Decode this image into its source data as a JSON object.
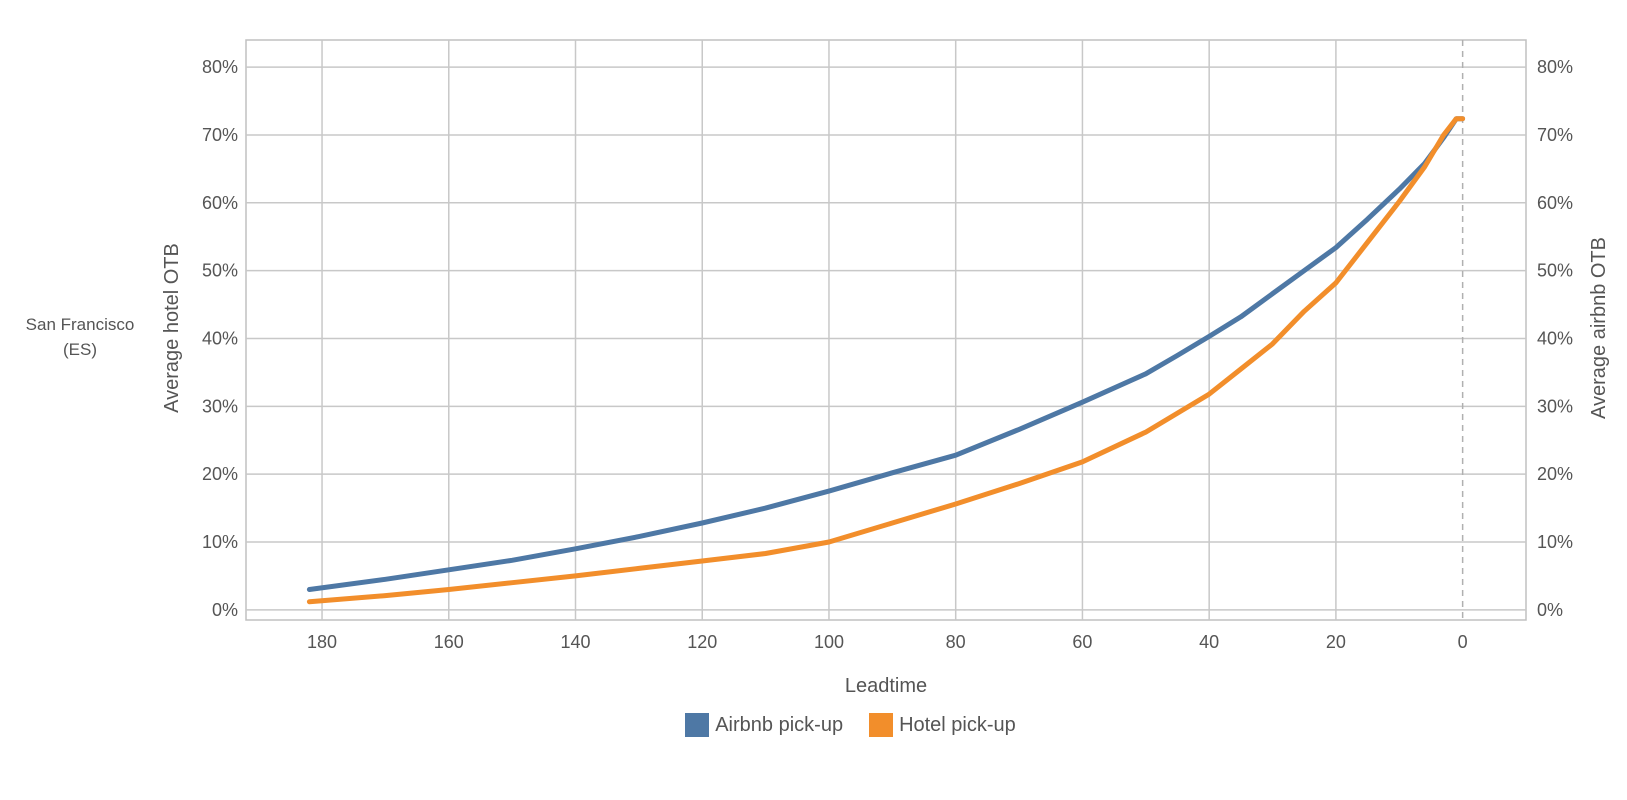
{
  "region_label": [
    "San Francisco",
    "(ES)"
  ],
  "chart_data": {
    "type": "line",
    "xlabel": "Leadtime",
    "ylabel_left": "Average hotel OTB",
    "ylabel_right": "Average airbnb OTB",
    "x_reversed": true,
    "xlim": [
      192,
      -10
    ],
    "ylim": [
      -1.5,
      84
    ],
    "x_ticks": [
      180,
      160,
      140,
      120,
      100,
      80,
      60,
      40,
      20,
      0
    ],
    "x_tick_labels": [
      "180",
      "160",
      "140",
      "120",
      "100",
      "80",
      "60",
      "40",
      "20",
      "0"
    ],
    "y_ticks": [
      0,
      10,
      20,
      30,
      40,
      50,
      60,
      70,
      80
    ],
    "y_tick_labels": [
      "0%",
      "10%",
      "20%",
      "30%",
      "40%",
      "50%",
      "60%",
      "70%",
      "80%"
    ],
    "grid": true,
    "reference_line_x": 0,
    "legend_position": "bottom-center",
    "series": [
      {
        "name": "Airbnb pick-up",
        "color": "#4e78a5",
        "x": [
          182,
          170,
          160,
          150,
          140,
          130,
          120,
          110,
          100,
          90,
          80,
          70,
          60,
          50,
          45,
          40,
          35,
          30,
          25,
          20,
          15,
          10,
          6,
          3,
          1,
          0
        ],
        "y": [
          3,
          4.5,
          5.9,
          7.3,
          9,
          10.8,
          12.8,
          15,
          17.5,
          20.2,
          22.8,
          26.6,
          30.6,
          34.8,
          37.5,
          40.3,
          43.2,
          46.6,
          50,
          53.4,
          57.6,
          62,
          65.8,
          69.6,
          72.4,
          72.4
        ]
      },
      {
        "name": "Hotel pick-up",
        "color": "#f28e2b",
        "x": [
          182,
          170,
          160,
          150,
          140,
          130,
          120,
          110,
          100,
          90,
          80,
          70,
          60,
          50,
          45,
          40,
          35,
          30,
          25,
          20,
          15,
          10,
          6,
          3,
          1,
          0
        ],
        "y": [
          1.2,
          2.1,
          3,
          4,
          5,
          6.1,
          7.2,
          8.3,
          10,
          12.8,
          15.6,
          18.6,
          21.8,
          26.2,
          29,
          31.8,
          35.5,
          39.2,
          44,
          48.2,
          54.2,
          60.2,
          65.3,
          70,
          72.4,
          72.4
        ]
      }
    ]
  }
}
